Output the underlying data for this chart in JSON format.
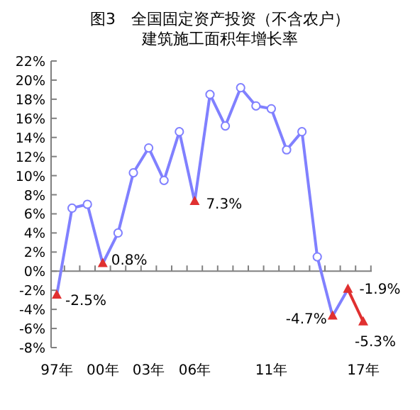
{
  "chart_data": {
    "type": "line",
    "title": "图3　全国固定资产投资（不含农户）",
    "subtitle": "建筑施工面积年增长率",
    "categories": [
      "97年",
      null,
      null,
      "00年",
      null,
      null,
      "03年",
      null,
      null,
      "06年",
      null,
      null,
      null,
      null,
      "11年",
      null,
      null,
      null,
      null,
      null,
      "17年"
    ],
    "ylim": [
      -8,
      22
    ],
    "yticks": [
      {
        "value": -8,
        "label": "-8%"
      },
      {
        "value": -6,
        "label": "-6%"
      },
      {
        "value": -4,
        "label": "-4%"
      },
      {
        "value": -2,
        "label": "-2%"
      },
      {
        "value": 0,
        "label": "0%"
      },
      {
        "value": 2,
        "label": "2%"
      },
      {
        "value": 4,
        "label": "4%"
      },
      {
        "value": 6,
        "label": "6%"
      },
      {
        "value": 8,
        "label": "8%"
      },
      {
        "value": 10,
        "label": "10%"
      },
      {
        "value": 12,
        "label": "12%"
      },
      {
        "value": 14,
        "label": "14%"
      },
      {
        "value": 16,
        "label": "16%"
      },
      {
        "value": 18,
        "label": "18%"
      },
      {
        "value": 20,
        "label": "20%"
      },
      {
        "value": 22,
        "label": "22%"
      }
    ],
    "series": [
      {
        "type": "line",
        "color": "#8080ff",
        "marker": "none",
        "values": [
          -2.5,
          6.6,
          7.0,
          0.8,
          4.0,
          10.3,
          12.9,
          9.5,
          14.6,
          7.3,
          18.5,
          15.2,
          19.2,
          17.3,
          17.0,
          12.7,
          14.6,
          1.5,
          -4.7,
          -1.9,
          null
        ]
      },
      {
        "type": "line",
        "color": "#e03030",
        "marker": "none",
        "values": [
          null,
          null,
          null,
          null,
          null,
          null,
          null,
          null,
          null,
          null,
          null,
          null,
          null,
          null,
          null,
          null,
          null,
          null,
          null,
          -1.9,
          -5.3
        ]
      },
      {
        "type": "scatter",
        "color": "#8080ff",
        "marker": "circle",
        "values": [
          null,
          6.6,
          7.0,
          null,
          4.0,
          10.3,
          12.9,
          9.5,
          14.6,
          null,
          18.5,
          15.2,
          19.2,
          17.3,
          17.0,
          12.7,
          14.6,
          1.5,
          null,
          null,
          null
        ]
      },
      {
        "type": "scatter",
        "color": "#e03030",
        "marker": "triangle",
        "values": [
          -2.5,
          null,
          null,
          0.8,
          null,
          null,
          null,
          null,
          null,
          7.3,
          null,
          null,
          null,
          null,
          null,
          null,
          null,
          null,
          -4.7,
          -1.9,
          -5.3
        ],
        "value_labels": [
          "-2.5%",
          null,
          null,
          "0.8%",
          null,
          null,
          null,
          null,
          null,
          "7.3%",
          null,
          null,
          null,
          null,
          null,
          null,
          null,
          null,
          "-4.7%",
          "-1.9%",
          "-5.3%"
        ]
      }
    ]
  }
}
